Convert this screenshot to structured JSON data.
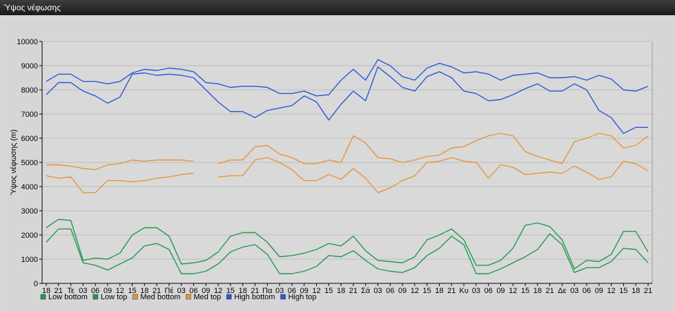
{
  "window": {
    "title": "Ύψος νέφωσης"
  },
  "chart_data": {
    "type": "line",
    "title": "",
    "xlabel": "",
    "ylabel": "Ύψος νέφωσης (m)",
    "ylim": [
      0,
      10000
    ],
    "yticks": [
      0,
      1000,
      2000,
      3000,
      4000,
      5000,
      6000,
      7000,
      8000,
      9000,
      10000
    ],
    "grid": true,
    "legend": "bottom-left",
    "categories": [
      "18",
      "21",
      "Τε",
      "03",
      "06",
      "09",
      "12",
      "15",
      "18",
      "21",
      "Πέ",
      "03",
      "06",
      "09",
      "12",
      "15",
      "18",
      "21",
      "Πα",
      "03",
      "06",
      "09",
      "12",
      "15",
      "18",
      "21",
      "Σά",
      "03",
      "06",
      "09",
      "12",
      "15",
      "18",
      "21",
      "Κυ",
      "03",
      "06",
      "09",
      "12",
      "15",
      "18",
      "21",
      "Δε",
      "03",
      "06",
      "09",
      "12",
      "15",
      "18",
      "21"
    ],
    "x_index": [
      0,
      1,
      2,
      3,
      4,
      5,
      6,
      7,
      8,
      9,
      10,
      11,
      12,
      13,
      14,
      15,
      16,
      17,
      18,
      19,
      20,
      21,
      22,
      23,
      24,
      25,
      26,
      27,
      28,
      29,
      30,
      31,
      32,
      33,
      34,
      35,
      36,
      37,
      38,
      39,
      40,
      41,
      42,
      43,
      44,
      45,
      46,
      47,
      48,
      49
    ],
    "series": [
      {
        "name": "Low bottom",
        "color": "#22994d",
        "values": [
          1700,
          2250,
          2250,
          850,
          750,
          550,
          800,
          1050,
          1550,
          1650,
          1400,
          400,
          400,
          500,
          800,
          1300,
          1500,
          1600,
          1200,
          400,
          400,
          500,
          700,
          1150,
          1100,
          1350,
          950,
          600,
          500,
          450,
          650,
          1150,
          1450,
          1950,
          1600,
          400,
          400,
          600,
          850,
          1100,
          1400,
          2050,
          1600,
          450,
          650,
          650,
          900,
          1450,
          1400,
          850
        ]
      },
      {
        "name": "Low top",
        "color": "#22994d",
        "values": [
          2300,
          2650,
          2600,
          950,
          1050,
          1000,
          1250,
          2000,
          2300,
          2300,
          1950,
          800,
          850,
          950,
          1300,
          1950,
          2100,
          2100,
          1700,
          1100,
          1150,
          1250,
          1400,
          1650,
          1550,
          1950,
          1350,
          950,
          900,
          850,
          1100,
          1800,
          2000,
          2250,
          1800,
          750,
          750,
          950,
          1450,
          2400,
          2500,
          2350,
          1800,
          600,
          950,
          900,
          1200,
          2150,
          2150,
          1300
        ]
      },
      {
        "name": "Med bottom",
        "color": "#e8943a",
        "values": [
          4450,
          4350,
          4400,
          3750,
          3750,
          4250,
          4250,
          4200,
          4250,
          4350,
          4400,
          4500,
          4550,
          null,
          4400,
          4450,
          4450,
          5100,
          5200,
          5000,
          4700,
          4250,
          4250,
          4500,
          4300,
          4750,
          4350,
          3750,
          3950,
          4250,
          4450,
          5000,
          5050,
          5200,
          5050,
          5000,
          4350,
          4900,
          4800,
          4500,
          4550,
          4600,
          4550,
          4850,
          4600,
          4300,
          4400,
          5050,
          4950,
          4650
        ]
      },
      {
        "name": "Med top",
        "color": "#e8943a",
        "values": [
          4900,
          4900,
          4850,
          4750,
          4700,
          4900,
          4950,
          5100,
          5050,
          5100,
          5100,
          5100,
          5050,
          null,
          4950,
          5100,
          5100,
          5650,
          5700,
          5350,
          5200,
          4950,
          4950,
          5100,
          5000,
          6100,
          5800,
          5200,
          5150,
          5000,
          5100,
          5250,
          5300,
          5600,
          5650,
          5900,
          6100,
          6200,
          6100,
          5450,
          5250,
          5100,
          4950,
          5850,
          6000,
          6200,
          6100,
          5600,
          5700,
          6100
        ]
      },
      {
        "name": "High bottom",
        "color": "#2a57d8",
        "values": [
          7800,
          8300,
          8300,
          7950,
          7750,
          7450,
          7700,
          8650,
          8700,
          8600,
          8650,
          8600,
          8500,
          8000,
          7500,
          7100,
          7100,
          6850,
          7150,
          7250,
          7350,
          7750,
          7500,
          6750,
          7400,
          7950,
          7550,
          8950,
          8550,
          8100,
          7950,
          8550,
          8750,
          8500,
          7950,
          7850,
          7550,
          7600,
          7800,
          8050,
          8250,
          7950,
          7950,
          8250,
          8000,
          7150,
          6850,
          6200,
          6450,
          6450
        ]
      },
      {
        "name": "High top",
        "color": "#2a57d8",
        "values": [
          8350,
          8650,
          8650,
          8350,
          8350,
          8250,
          8350,
          8700,
          8850,
          8800,
          8900,
          8850,
          8750,
          8300,
          8250,
          8100,
          8150,
          8150,
          8100,
          7850,
          7850,
          7950,
          7750,
          7800,
          8400,
          8850,
          8400,
          9250,
          9000,
          8550,
          8400,
          8900,
          9100,
          8950,
          8700,
          8750,
          8650,
          8400,
          8600,
          8650,
          8700,
          8500,
          8500,
          8550,
          8400,
          8600,
          8450,
          8000,
          7950,
          8150
        ]
      }
    ]
  }
}
